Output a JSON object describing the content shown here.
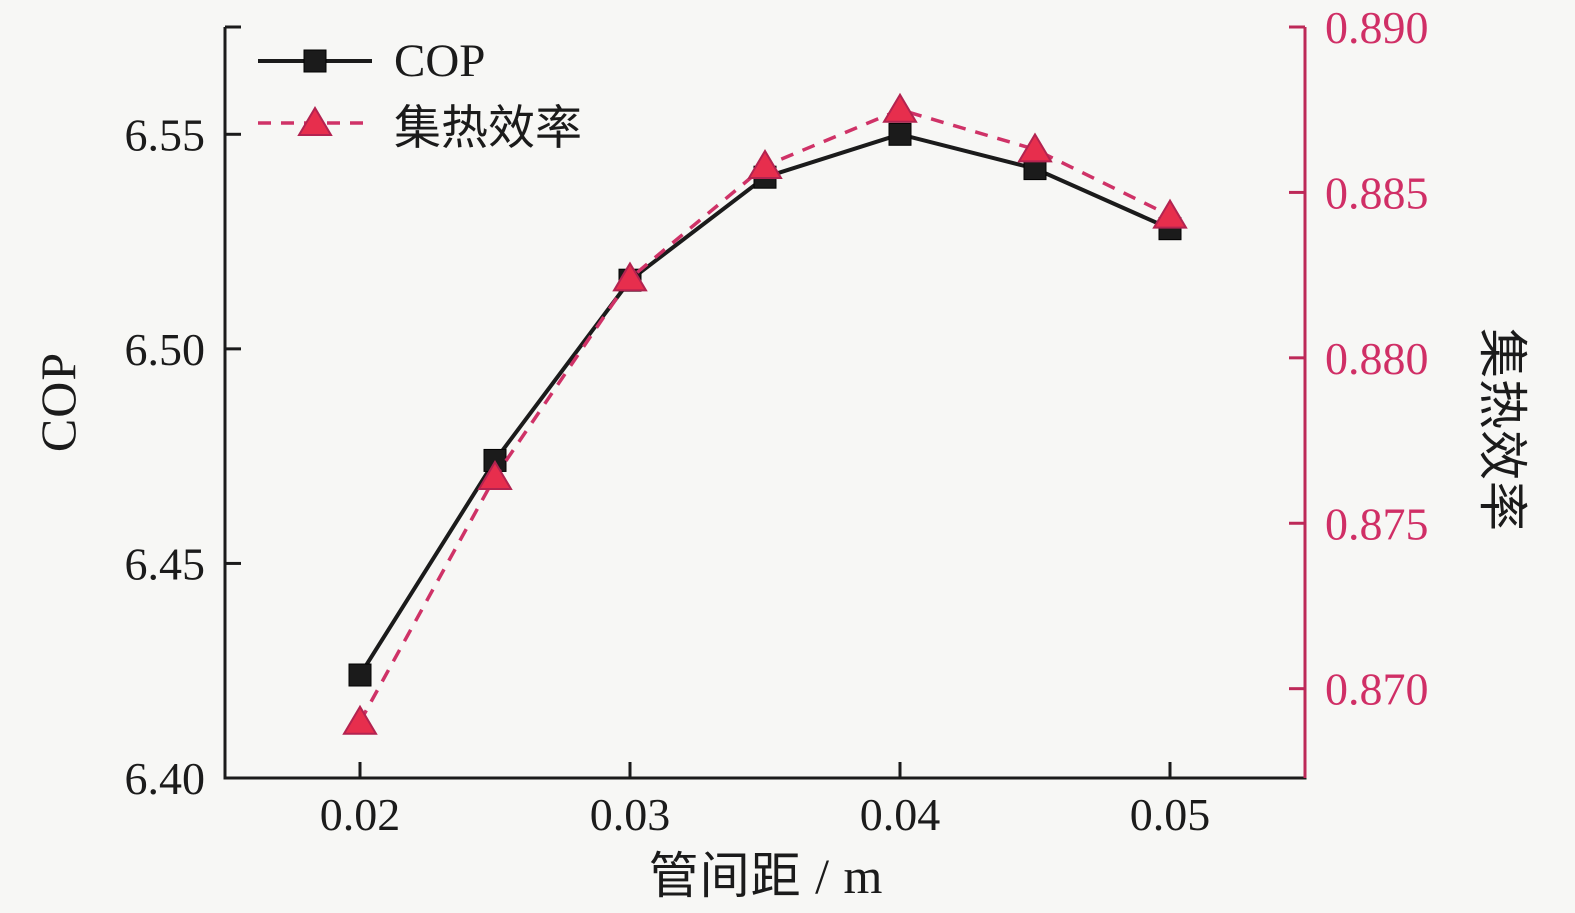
{
  "figure": {
    "background_color": "#f7f7f5"
  },
  "chart_data": {
    "type": "line",
    "x": [
      0.02,
      0.025,
      0.03,
      0.035,
      0.04,
      0.045,
      0.05
    ],
    "series": [
      {
        "name": "COP",
        "axis": "left",
        "values": [
          6.424,
          6.474,
          6.516,
          6.54,
          6.55,
          6.542,
          6.528
        ],
        "line_color": "#1b1b1b",
        "line_style": "solid",
        "marker": "square",
        "marker_fill": "#1b1b1b",
        "marker_edge": "#000000"
      },
      {
        "name": "集热效率",
        "axis": "right",
        "values": [
          0.869,
          0.8764,
          0.8824,
          0.8858,
          0.8875,
          0.8863,
          0.8843
        ],
        "line_color": "#cf3267",
        "line_style": "dashed",
        "marker": "triangle-up",
        "marker_fill": "#e72e4d",
        "marker_edge": "#b32350"
      }
    ],
    "x_axis": {
      "label": "管间距 / m",
      "range": [
        0.015,
        0.055
      ],
      "ticks": [
        {
          "value": 0.02,
          "label": "0.02"
        },
        {
          "value": 0.03,
          "label": "0.03"
        },
        {
          "value": 0.04,
          "label": "0.04"
        },
        {
          "value": 0.05,
          "label": "0.05"
        }
      ],
      "color": "#1b1b1b"
    },
    "left_axis": {
      "label": "COP",
      "range": [
        6.4,
        6.575
      ],
      "ticks": [
        {
          "value": 6.4,
          "label": "6.40"
        },
        {
          "value": 6.45,
          "label": "6.45"
        },
        {
          "value": 6.5,
          "label": "6.50"
        },
        {
          "value": 6.55,
          "label": "6.55"
        }
      ],
      "end_tick_at_max": true,
      "color": "#1b1b1b"
    },
    "right_axis": {
      "label": "集热效率",
      "range": [
        0.8673,
        0.89
      ],
      "ticks": [
        {
          "value": 0.87,
          "label": "0.870"
        },
        {
          "value": 0.875,
          "label": "0.875"
        },
        {
          "value": 0.88,
          "label": "0.880"
        },
        {
          "value": 0.885,
          "label": "0.885"
        },
        {
          "value": 0.89,
          "label": "0.890"
        }
      ],
      "spine_color": "#bd2958",
      "text_color": "#d02f66"
    },
    "grid": false,
    "legend": {
      "position": "top-left-inside",
      "items": [
        "COP",
        "集热效率"
      ]
    }
  }
}
